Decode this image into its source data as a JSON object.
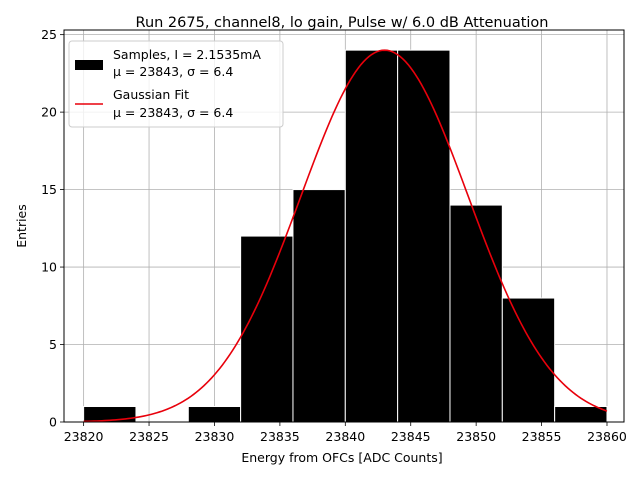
{
  "chart_data": {
    "type": "bar",
    "title": "Run 2675, channel8, lo gain, Pulse w/ 6.0 dB Attenuation",
    "xlabel": "Energy from OFCs [ADC Counts]",
    "ylabel": "Entries",
    "xlim": [
      23818.5,
      23861.3
    ],
    "ylim": [
      0,
      25.3
    ],
    "xticks": [
      23820,
      23825,
      23830,
      23835,
      23840,
      23845,
      23850,
      23855,
      23860
    ],
    "yticks": [
      0,
      5,
      10,
      15,
      20,
      25
    ],
    "grid": true,
    "legend_position": "top-left",
    "histogram": {
      "bin_edges": [
        23820,
        23824,
        23828,
        23832,
        23836,
        23840,
        23844,
        23848,
        23852,
        23856,
        23860
      ],
      "counts": [
        1,
        0,
        1,
        12,
        15,
        24,
        24,
        14,
        8,
        1
      ],
      "bar_color": "#000000",
      "edge_color": "#ffffff"
    },
    "fit": {
      "mu": 23843,
      "sigma": 6.4,
      "amplitude": 24,
      "x_range": [
        23820,
        23860
      ],
      "line_color": "#e8000b"
    },
    "legend": [
      {
        "line1": "Samples, I = 2.1535mA",
        "line2": "μ = 23843, σ = 6.4",
        "swatch": "bar"
      },
      {
        "line1": "Gaussian Fit",
        "line2": "μ = 23843, σ = 6.4",
        "swatch": "line"
      }
    ]
  }
}
